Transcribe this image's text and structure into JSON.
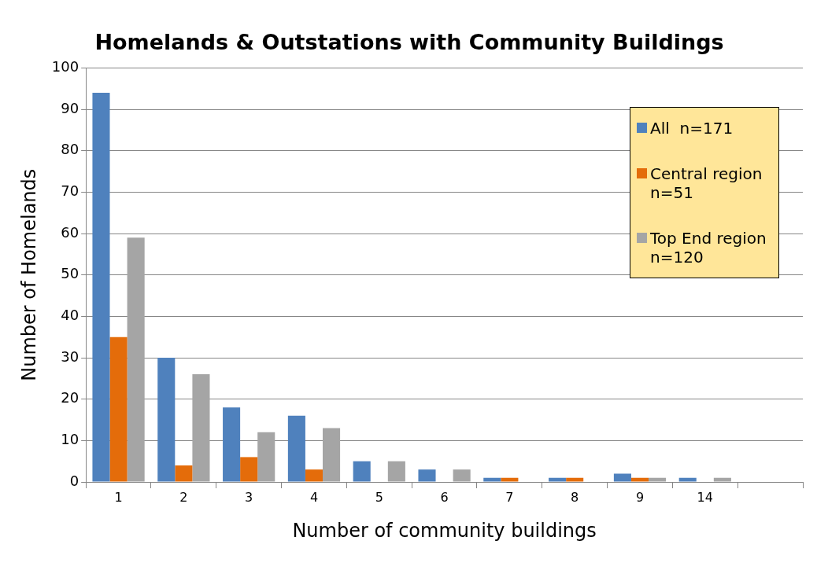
{
  "chart_data": {
    "type": "bar",
    "title": "Homelands & Outstations with Community Buildings",
    "xlabel": "Number of community buildings",
    "ylabel": "Number of Homelands",
    "categories": [
      "1",
      "2",
      "3",
      "4",
      "5",
      "6",
      "7",
      "8",
      "9",
      "14",
      null
    ],
    "series": [
      {
        "name": "All  n=171",
        "color": "#4f81bd",
        "values": [
          94,
          30,
          18,
          16,
          5,
          3,
          1,
          1,
          2,
          1,
          null
        ]
      },
      {
        "name": "Central region n=51",
        "color": "#e46c0a",
        "values": [
          35,
          4,
          6,
          3,
          0,
          0,
          1,
          1,
          1,
          0,
          null
        ]
      },
      {
        "name": "Top End region  n=120",
        "color": "#a5a5a5",
        "values": [
          59,
          26,
          12,
          13,
          5,
          3,
          0,
          0,
          1,
          1,
          null
        ]
      }
    ],
    "ylim": [
      0,
      100
    ],
    "yticks": [
      0,
      10,
      20,
      30,
      40,
      50,
      60,
      70,
      80,
      90,
      100
    ],
    "grid": "y",
    "legend": "top right"
  }
}
